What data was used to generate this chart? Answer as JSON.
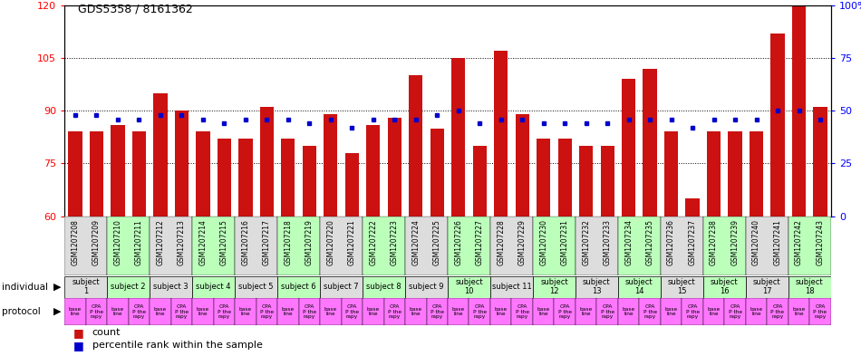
{
  "title": "GDS5358 / 8161362",
  "samples": [
    "GSM1207208",
    "GSM1207209",
    "GSM1207210",
    "GSM1207211",
    "GSM1207212",
    "GSM1207213",
    "GSM1207214",
    "GSM1207215",
    "GSM1207216",
    "GSM1207217",
    "GSM1207218",
    "GSM1207219",
    "GSM1207220",
    "GSM1207221",
    "GSM1207222",
    "GSM1207223",
    "GSM1207224",
    "GSM1207225",
    "GSM1207226",
    "GSM1207227",
    "GSM1207228",
    "GSM1207229",
    "GSM1207230",
    "GSM1207231",
    "GSM1207232",
    "GSM1207233",
    "GSM1207234",
    "GSM1207235",
    "GSM1207236",
    "GSM1207237",
    "GSM1207238",
    "GSM1207239",
    "GSM1207240",
    "GSM1207241",
    "GSM1207242",
    "GSM1207243"
  ],
  "counts": [
    84,
    84,
    86,
    84,
    95,
    90,
    84,
    82,
    82,
    91,
    82,
    80,
    89,
    78,
    86,
    88,
    100,
    85,
    105,
    80,
    107,
    89,
    82,
    82,
    80,
    80,
    99,
    102,
    84,
    65,
    84,
    84,
    84,
    112,
    120,
    91
  ],
  "percentiles": [
    48,
    48,
    46,
    46,
    48,
    48,
    46,
    44,
    46,
    46,
    46,
    44,
    46,
    42,
    46,
    46,
    46,
    48,
    50,
    44,
    46,
    46,
    44,
    44,
    44,
    44,
    46,
    46,
    46,
    42,
    46,
    46,
    46,
    50,
    50,
    46
  ],
  "ylim_left": [
    60,
    120
  ],
  "ylim_right": [
    0,
    100
  ],
  "yticks_left": [
    60,
    75,
    90,
    105,
    120
  ],
  "yticks_right": [
    0,
    25,
    50,
    75,
    100
  ],
  "bar_color": "#cc1111",
  "marker_color": "#0000cc",
  "gridline_y": [
    75,
    90,
    105
  ],
  "subjects": [
    {
      "label": "subject\n1",
      "start": 0,
      "end": 2,
      "color": "#dddddd"
    },
    {
      "label": "subject 2",
      "start": 2,
      "end": 4,
      "color": "#bbffbb"
    },
    {
      "label": "subject 3",
      "start": 4,
      "end": 6,
      "color": "#dddddd"
    },
    {
      "label": "subject 4",
      "start": 6,
      "end": 8,
      "color": "#bbffbb"
    },
    {
      "label": "subject 5",
      "start": 8,
      "end": 10,
      "color": "#dddddd"
    },
    {
      "label": "subject 6",
      "start": 10,
      "end": 12,
      "color": "#bbffbb"
    },
    {
      "label": "subject 7",
      "start": 12,
      "end": 14,
      "color": "#dddddd"
    },
    {
      "label": "subject 8",
      "start": 14,
      "end": 16,
      "color": "#bbffbb"
    },
    {
      "label": "subject 9",
      "start": 16,
      "end": 18,
      "color": "#dddddd"
    },
    {
      "label": "subject\n10",
      "start": 18,
      "end": 20,
      "color": "#bbffbb"
    },
    {
      "label": "subject 11",
      "start": 20,
      "end": 22,
      "color": "#dddddd"
    },
    {
      "label": "subject\n12",
      "start": 22,
      "end": 24,
      "color": "#bbffbb"
    },
    {
      "label": "subject\n13",
      "start": 24,
      "end": 26,
      "color": "#dddddd"
    },
    {
      "label": "subject\n14",
      "start": 26,
      "end": 28,
      "color": "#bbffbb"
    },
    {
      "label": "subject\n15",
      "start": 28,
      "end": 30,
      "color": "#dddddd"
    },
    {
      "label": "subject\n16",
      "start": 30,
      "end": 32,
      "color": "#bbffbb"
    },
    {
      "label": "subject\n17",
      "start": 32,
      "end": 34,
      "color": "#dddddd"
    },
    {
      "label": "subject\n18",
      "start": 34,
      "end": 36,
      "color": "#bbffbb"
    }
  ],
  "individual_label": "individual",
  "protocol_label": "protocol",
  "legend_count": "count",
  "legend_percentile": "percentile rank within the sample",
  "protocol_color": "#ff77ff"
}
